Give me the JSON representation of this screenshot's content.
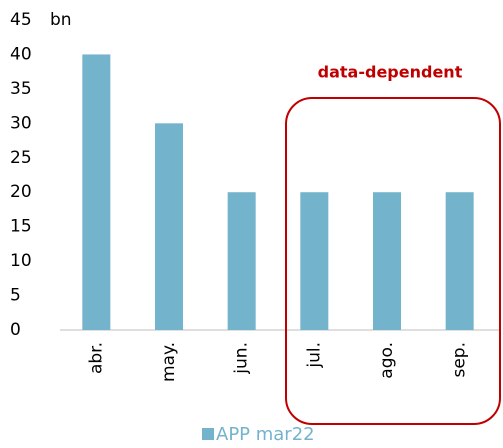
{
  "chart_data": {
    "type": "bar",
    "ylabel": "bn",
    "categories": [
      "abr.",
      "may.",
      "jun.",
      "jul.",
      "ago.",
      "sep."
    ],
    "series": [
      {
        "name": "APP mar22",
        "color": "#74b3cc",
        "values": [
          40,
          30,
          20,
          20,
          20,
          20
        ]
      }
    ],
    "ylim": [
      0,
      45
    ],
    "yticks": [
      0,
      5,
      10,
      15,
      20,
      25,
      30,
      35,
      40,
      45
    ],
    "annotations": [
      {
        "text": "data-dependent",
        "color": "#c00000"
      }
    ],
    "legend": "bottom"
  }
}
